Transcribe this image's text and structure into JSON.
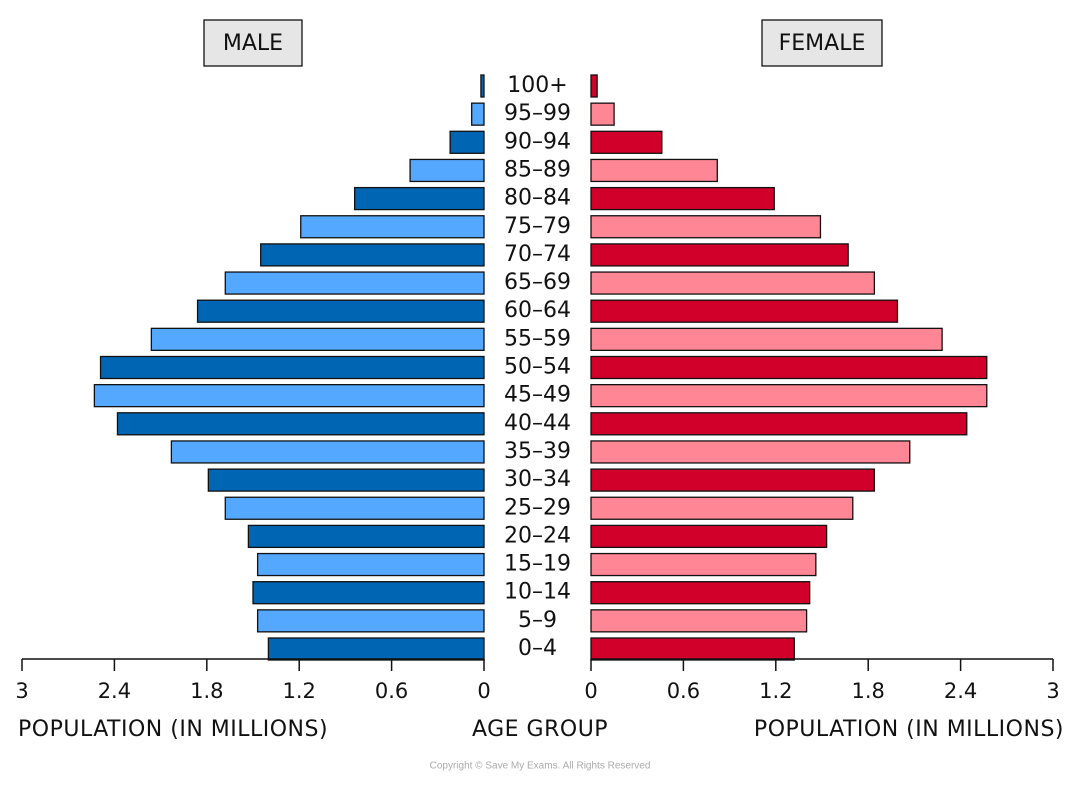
{
  "chart_data": {
    "type": "pyramid",
    "center_label": "AGE GROUP",
    "categories": [
      "0–4",
      "5–9",
      "10–14",
      "15–19",
      "20–24",
      "25–29",
      "30–34",
      "35–39",
      "40–44",
      "45–49",
      "50–54",
      "55–59",
      "60–64",
      "65–69",
      "70–74",
      "75–79",
      "80–84",
      "85–89",
      "90–94",
      "95–99",
      "100+"
    ],
    "series": [
      {
        "name": "MALE",
        "colors": [
          "#0066b3",
          "#55a8ff"
        ],
        "values": [
          1.4,
          1.47,
          1.5,
          1.47,
          1.53,
          1.68,
          1.79,
          2.03,
          2.38,
          2.53,
          2.49,
          2.16,
          1.86,
          1.68,
          1.45,
          1.19,
          0.84,
          0.48,
          0.22,
          0.08,
          0.02
        ],
        "xlim": [
          0,
          3
        ],
        "xticks": [
          3,
          2.4,
          1.8,
          1.2,
          0.6,
          0
        ],
        "xlabel": "POPULATION (IN MILLIONS)"
      },
      {
        "name": "FEMALE",
        "colors": [
          "#d0002a",
          "#ff8795"
        ],
        "values": [
          1.32,
          1.4,
          1.42,
          1.46,
          1.53,
          1.7,
          1.84,
          2.07,
          2.44,
          2.57,
          2.57,
          2.28,
          1.99,
          1.84,
          1.67,
          1.49,
          1.19,
          0.82,
          0.46,
          0.15,
          0.04
        ],
        "xlim": [
          0,
          3
        ],
        "xticks": [
          0,
          0.6,
          1.2,
          1.8,
          2.4,
          3
        ],
        "xlabel": "POPULATION (IN MILLIONS)"
      }
    ],
    "copyright": "Copyright © Save My Exams. All Rights Reserved"
  }
}
